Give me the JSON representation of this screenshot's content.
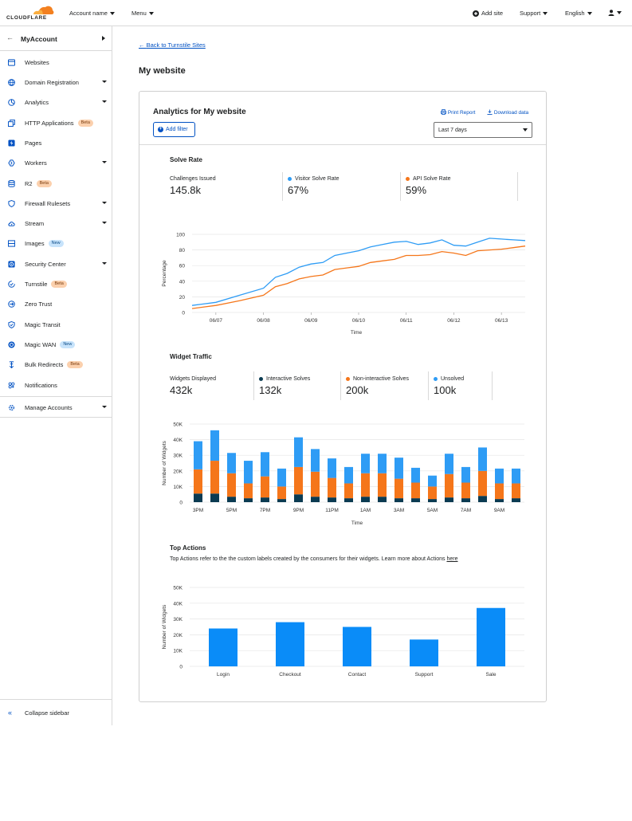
{
  "topbar": {
    "logo_text": "CLOUDFLARE",
    "account_name": "Account name",
    "menu": "Menu",
    "add_site": "Add site",
    "support": "Support",
    "language": "English"
  },
  "sidebar": {
    "title": "MyAccount",
    "items": [
      {
        "label": "Websites",
        "icon": "browser-icon",
        "caret": false,
        "badge": ""
      },
      {
        "label": "Domain Registration",
        "icon": "globe-icon",
        "caret": true,
        "badge": ""
      },
      {
        "label": "Analytics",
        "icon": "pie-chart-icon",
        "caret": true,
        "badge": ""
      },
      {
        "label": "HTTP Applications",
        "icon": "layers-icon",
        "caret": false,
        "badge": "Beta"
      },
      {
        "label": "Pages",
        "icon": "lightning-icon",
        "caret": false,
        "badge": ""
      },
      {
        "label": "Workers",
        "icon": "workers-icon",
        "caret": true,
        "badge": ""
      },
      {
        "label": "R2",
        "icon": "database-icon",
        "caret": false,
        "badge": "Beta"
      },
      {
        "label": "Firewall Rulesets",
        "icon": "shield-icon",
        "caret": true,
        "badge": ""
      },
      {
        "label": "Stream",
        "icon": "cloud-icon",
        "caret": true,
        "badge": ""
      },
      {
        "label": "Images",
        "icon": "image-icon",
        "caret": false,
        "badge": "New"
      },
      {
        "label": "Security Center",
        "icon": "security-icon",
        "caret": true,
        "badge": ""
      },
      {
        "label": "Turnstile",
        "icon": "turnstile-icon",
        "caret": false,
        "badge": "Beta"
      },
      {
        "label": "Zero Trust",
        "icon": "zero-trust-icon",
        "caret": false,
        "badge": ""
      },
      {
        "label": "Magic Transit",
        "icon": "shield-check-icon",
        "caret": false,
        "badge": ""
      },
      {
        "label": "Magic WAN",
        "icon": "network-icon",
        "caret": false,
        "badge": "New"
      },
      {
        "label": "Bulk Redirects",
        "icon": "redirect-icon",
        "caret": false,
        "badge": "Beta"
      },
      {
        "label": "Notifications",
        "icon": "notification-icon",
        "caret": false,
        "badge": ""
      }
    ],
    "manage_accounts": "Manage Accounts",
    "collapse": "Collapse sidebar"
  },
  "main": {
    "back_link": "Back to Turnstile Sites",
    "page_title": "My website",
    "card_title": "Analytics for My website",
    "add_filter": "Add filter",
    "print_report": "Print Report",
    "download_data": "Download data",
    "time_range": "Last 7 days",
    "solve_rate": {
      "title": "Solve Rate",
      "stats": [
        {
          "label": "Challenges Issued",
          "value": "145.8k",
          "color": ""
        },
        {
          "label": "Visitor Solve Rate",
          "value": "67%",
          "color": "#2e9cf5"
        },
        {
          "label": "API Solve Rate",
          "value": "59%",
          "color": "#f5761a"
        }
      ]
    },
    "widget_traffic": {
      "title": "Widget Traffic",
      "stats": [
        {
          "label": "Widgets Displayed",
          "value": "432k",
          "color": ""
        },
        {
          "label": "Interactive Solves",
          "value": "132k",
          "color": "#0b3b52"
        },
        {
          "label": "Non-interactive Solves",
          "value": "200k",
          "color": "#f5761a"
        },
        {
          "label": "Unsolved",
          "value": "100k",
          "color": "#2e9cf5"
        }
      ]
    },
    "top_actions": {
      "title": "Top Actions",
      "description": "Top Actions refer to the the custom labels created by the consumers for their widgets. Learn more about Actions ",
      "link": "here"
    }
  },
  "chart_data": [
    {
      "type": "line",
      "xlabel": "Time",
      "ylabel": "Percentage",
      "ylim": [
        0,
        100
      ],
      "yticks": [
        0,
        20,
        40,
        60,
        80,
        100
      ],
      "xtick_labels": [
        "06/07",
        "06/08",
        "06/09",
        "06/10",
        "06/11",
        "06/12",
        "06/13"
      ],
      "x_range": [
        0,
        14
      ],
      "xtick_positions": [
        1,
        3,
        5,
        7,
        9,
        11,
        13
      ],
      "series": [
        {
          "name": "Visitor Solve Rate",
          "color": "#2e9cf5",
          "x": [
            0,
            1,
            2,
            3,
            3.5,
            4,
            4.5,
            5,
            5.5,
            6,
            6.5,
            7,
            7.5,
            8,
            8.5,
            9,
            9.5,
            10,
            10.5,
            11,
            11.5,
            12,
            12.5,
            13,
            13.5,
            14
          ],
          "values": [
            9,
            13,
            22,
            31,
            45,
            50,
            58,
            62,
            64,
            73,
            76,
            79,
            84,
            87,
            90,
            91,
            87,
            89,
            93,
            86,
            85,
            90,
            95,
            94,
            93,
            92
          ]
        },
        {
          "name": "API Solve Rate",
          "color": "#f5761a",
          "x": [
            0,
            1,
            2,
            3,
            3.5,
            4,
            4.5,
            5,
            5.5,
            6,
            6.5,
            7,
            7.5,
            8,
            8.5,
            9,
            9.5,
            10,
            10.5,
            11,
            11.5,
            12,
            12.5,
            13,
            13.5,
            14
          ],
          "values": [
            5,
            9,
            15,
            22,
            33,
            37,
            43,
            46,
            48,
            55,
            57,
            59,
            64,
            66,
            68,
            73,
            73,
            74,
            78,
            76,
            73,
            79,
            80,
            81,
            83,
            85
          ]
        }
      ]
    },
    {
      "type": "bar",
      "stacked": true,
      "xlabel": "Time",
      "ylabel": "Number of Widgets",
      "ylim": [
        0,
        50000
      ],
      "yticks": [
        0,
        10000,
        20000,
        30000,
        40000,
        50000
      ],
      "ytick_labels": [
        "0",
        "10K",
        "20K",
        "30K",
        "40K",
        "50K"
      ],
      "categories": [
        "3PM",
        "4PM",
        "5PM",
        "6PM",
        "7PM",
        "8PM",
        "9PM",
        "10PM",
        "11PM",
        "12AM",
        "1AM",
        "2AM",
        "3AM",
        "4AM",
        "5AM",
        "6AM",
        "7AM",
        "8AM",
        "9AM",
        "10AM"
      ],
      "xtick_labels": [
        "3PM",
        "",
        "5PM",
        "",
        "7PM",
        "",
        "9PM",
        "",
        "11PM",
        "",
        "1AM",
        "",
        "3AM",
        "",
        "5AM",
        "",
        "7AM",
        "",
        "9AM",
        ""
      ],
      "series": [
        {
          "name": "Interactive Solves",
          "color": "#0b3b52",
          "values": [
            5500,
            5500,
            3500,
            2500,
            3000,
            2000,
            5000,
            3500,
            3000,
            2500,
            3500,
            3500,
            2500,
            2500,
            2000,
            3000,
            2500,
            4000,
            2000,
            2500
          ]
        },
        {
          "name": "Non-interactive Solves",
          "color": "#f5761a",
          "values": [
            15500,
            21000,
            15000,
            9500,
            13500,
            8000,
            17500,
            16000,
            12500,
            9500,
            15000,
            15000,
            12500,
            10000,
            8000,
            15000,
            10000,
            16000,
            10000,
            9500
          ]
        },
        {
          "name": "Unsolved",
          "color": "#2e9cf5",
          "values": [
            18000,
            19500,
            13000,
            14500,
            15500,
            11500,
            19000,
            14500,
            12500,
            10500,
            12500,
            12500,
            13500,
            9500,
            7000,
            13000,
            10000,
            15000,
            9500,
            9500
          ]
        }
      ]
    },
    {
      "type": "bar",
      "xlabel": "",
      "ylabel": "Number of Widgets",
      "ylim": [
        0,
        50000
      ],
      "yticks": [
        0,
        10000,
        20000,
        30000,
        40000,
        50000
      ],
      "ytick_labels": [
        "0",
        "10K",
        "20K",
        "30K",
        "40K",
        "50K"
      ],
      "categories": [
        "Login",
        "Checkout",
        "Contact",
        "Support",
        "Sale"
      ],
      "values": [
        24000,
        28000,
        25000,
        17000,
        37000
      ],
      "color": "#0a8cf8"
    }
  ]
}
